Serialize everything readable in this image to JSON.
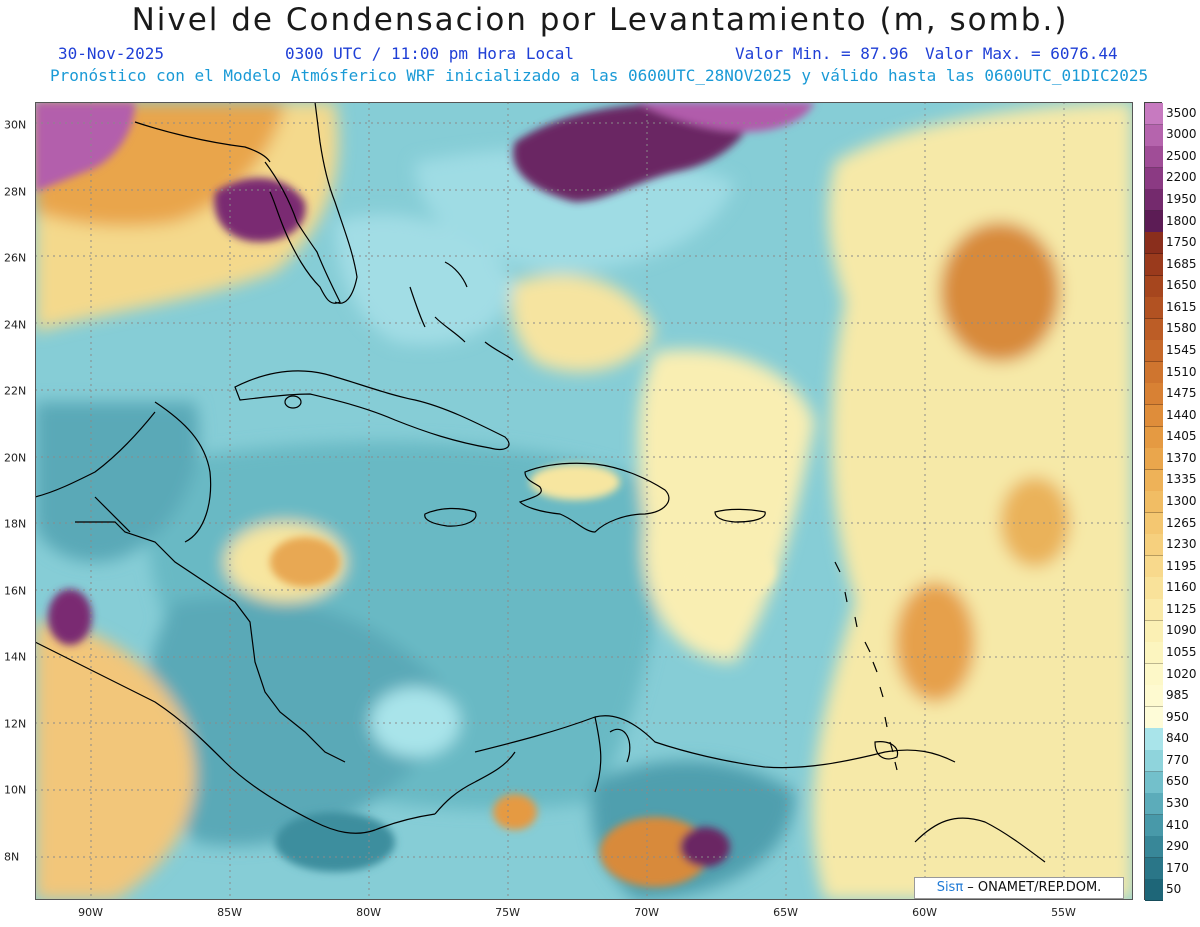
{
  "header": {
    "title": "Nivel de Condensacion por Levantamiento (m, somb.)",
    "date": "30-Nov-2025",
    "time": "0300 UTC / 11:00 pm Hora Local",
    "min_label": "Valor Min. = 87.96",
    "max_label": "Valor Max. = 6076.44",
    "forecast": "Pronóstico con el Modelo Atmósferico WRF inicializado a las 0600UTC_28NOV2025 y válido hasta las  0600UTC_01DIC2025"
  },
  "axes": {
    "lat_labels": [
      "30N",
      "28N",
      "26N",
      "24N",
      "22N",
      "20N",
      "18N",
      "16N",
      "14N",
      "12N",
      "10N",
      "8N"
    ],
    "lat_values": [
      30,
      28,
      26,
      24,
      22,
      20,
      18,
      16,
      14,
      12,
      10,
      8
    ],
    "lon_labels": [
      "90W",
      "85W",
      "80W",
      "75W",
      "70W",
      "65W",
      "60W",
      "55W"
    ],
    "lon_values": [
      -90,
      -85,
      -80,
      -75,
      -70,
      -65,
      -60,
      -55
    ],
    "lat_range": [
      6.7,
      30.7
    ],
    "lon_range": [
      -92,
      -52.5
    ]
  },
  "colorbar": {
    "labels": [
      "3500",
      "3000",
      "2500",
      "2200",
      "1950",
      "1800",
      "1750",
      "1685",
      "1650",
      "1615",
      "1580",
      "1545",
      "1510",
      "1475",
      "1440",
      "1405",
      "1370",
      "1335",
      "1300",
      "1265",
      "1230",
      "1195",
      "1160",
      "1125",
      "1090",
      "1055",
      "1020",
      "985",
      "950",
      "840",
      "770",
      "650",
      "530",
      "410",
      "290",
      "170",
      "50"
    ],
    "colors": [
      "#c77ac0",
      "#b564ad",
      "#a04d97",
      "#8b3a83",
      "#742a6d",
      "#5c1c55",
      "#8a2e1c",
      "#9a3a1c",
      "#a6461e",
      "#b25222",
      "#bc5d26",
      "#c6692a",
      "#cf752f",
      "#d88134",
      "#df8d3a",
      "#e59a42",
      "#ea a64c",
      "#eeb258",
      "#f1bd64",
      "#f4c771",
      "#f6d07e",
      "#f8d98c",
      "#f9e29a",
      "#faeaa8",
      "#fbf0b4",
      "#fcf5bf",
      "#fdf8c8",
      "#fefad0",
      "#fefcd8",
      "#a9e4ea",
      "#8fd4dc",
      "#73c0cb",
      "#5cacba",
      "#4899a9",
      "#388798",
      "#2a7688",
      "#1e6678"
    ]
  },
  "credit": {
    "sis": "Sisπ",
    "text": " – ONAMET/REP.DOM."
  },
  "colors": {
    "dry_purple": "#7a2c72",
    "orange": "#d9893a",
    "yellow": "#fbeeaa",
    "light_blue": "#9fdce4",
    "teal": "#5fb0bd",
    "dark_teal": "#3a8f9e",
    "land_line": "#000000"
  }
}
